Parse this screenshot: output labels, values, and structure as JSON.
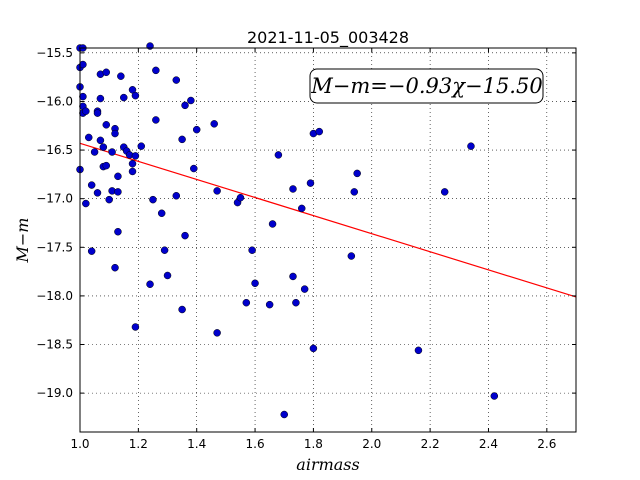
{
  "chart_data": {
    "type": "scatter",
    "title": "2021-11-05_003428",
    "xlabel": "airmass",
    "ylabel": "M−m",
    "xlim": [
      1.0,
      2.7
    ],
    "ylim": [
      -19.4,
      -15.45
    ],
    "y_inverted": true,
    "grid": true,
    "x_ticks": [
      1.0,
      1.2,
      1.4,
      1.6,
      1.8,
      2.0,
      2.2,
      2.4,
      2.6
    ],
    "x_tick_labels": [
      "1.0",
      "1.2",
      "1.4",
      "1.6",
      "1.8",
      "2.0",
      "2.2",
      "2.4",
      "2.6"
    ],
    "y_ticks": [
      -15.5,
      -16.0,
      -16.5,
      -17.0,
      -17.5,
      -18.0,
      -18.5,
      -19.0
    ],
    "y_tick_labels": [
      "−15.5",
      "−16.0",
      "−16.5",
      "−17.0",
      "−17.5",
      "−18.0",
      "−18.5",
      "−19.0"
    ],
    "annotation": "M−m=−0.93χ−15.50",
    "annotation_position": "top-right",
    "fit_line": {
      "slope": -0.93,
      "intercept": -15.5,
      "color": "#ff0000"
    },
    "marker_color": "#0000cc",
    "points": [
      [
        1.0,
        -15.45
      ],
      [
        1.01,
        -15.45
      ],
      [
        1.0,
        -15.65
      ],
      [
        1.01,
        -15.62
      ],
      [
        1.0,
        -15.85
      ],
      [
        1.01,
        -15.95
      ],
      [
        1.01,
        -16.05
      ],
      [
        1.01,
        -16.12
      ],
      [
        1.02,
        -16.1
      ],
      [
        1.0,
        -16.7
      ],
      [
        1.02,
        -17.05
      ],
      [
        1.03,
        -16.37
      ],
      [
        1.04,
        -16.86
      ],
      [
        1.04,
        -17.54
      ],
      [
        1.05,
        -16.52
      ],
      [
        1.06,
        -16.1
      ],
      [
        1.06,
        -16.12
      ],
      [
        1.06,
        -16.94
      ],
      [
        1.07,
        -15.97
      ],
      [
        1.07,
        -15.72
      ],
      [
        1.07,
        -16.4
      ],
      [
        1.08,
        -16.67
      ],
      [
        1.08,
        -16.47
      ],
      [
        1.09,
        -16.24
      ],
      [
        1.09,
        -15.7
      ],
      [
        1.09,
        -16.66
      ],
      [
        1.1,
        -17.01
      ],
      [
        1.11,
        -16.92
      ],
      [
        1.11,
        -16.52
      ],
      [
        1.12,
        -16.28
      ],
      [
        1.12,
        -16.33
      ],
      [
        1.12,
        -17.71
      ],
      [
        1.13,
        -16.93
      ],
      [
        1.13,
        -16.77
      ],
      [
        1.13,
        -17.34
      ],
      [
        1.14,
        -15.74
      ],
      [
        1.15,
        -15.96
      ],
      [
        1.15,
        -16.47
      ],
      [
        1.16,
        -16.51
      ],
      [
        1.17,
        -16.55
      ],
      [
        1.18,
        -16.64
      ],
      [
        1.18,
        -16.72
      ],
      [
        1.18,
        -15.88
      ],
      [
        1.19,
        -15.94
      ],
      [
        1.19,
        -18.32
      ],
      [
        1.19,
        -16.56
      ],
      [
        1.21,
        -16.46
      ],
      [
        1.24,
        -15.43
      ],
      [
        1.24,
        -17.88
      ],
      [
        1.25,
        -17.01
      ],
      [
        1.26,
        -15.68
      ],
      [
        1.26,
        -16.19
      ],
      [
        1.28,
        -17.15
      ],
      [
        1.29,
        -17.53
      ],
      [
        1.3,
        -17.79
      ],
      [
        1.33,
        -15.78
      ],
      [
        1.33,
        -16.97
      ],
      [
        1.35,
        -16.39
      ],
      [
        1.35,
        -18.14
      ],
      [
        1.36,
        -17.38
      ],
      [
        1.36,
        -16.04
      ],
      [
        1.38,
        -15.99
      ],
      [
        1.39,
        -16.69
      ],
      [
        1.4,
        -16.29
      ],
      [
        1.46,
        -16.23
      ],
      [
        1.47,
        -16.92
      ],
      [
        1.47,
        -18.38
      ],
      [
        1.54,
        -17.04
      ],
      [
        1.55,
        -16.99
      ],
      [
        1.57,
        -18.07
      ],
      [
        1.59,
        -17.53
      ],
      [
        1.6,
        -17.87
      ],
      [
        1.65,
        -18.09
      ],
      [
        1.66,
        -17.26
      ],
      [
        1.68,
        -16.55
      ],
      [
        1.7,
        -19.22
      ],
      [
        1.73,
        -16.9
      ],
      [
        1.73,
        -17.8
      ],
      [
        1.74,
        -18.07
      ],
      [
        1.76,
        -17.1
      ],
      [
        1.77,
        -17.93
      ],
      [
        1.79,
        -16.84
      ],
      [
        1.8,
        -16.33
      ],
      [
        1.8,
        -18.54
      ],
      [
        1.82,
        -16.31
      ],
      [
        1.93,
        -17.59
      ],
      [
        1.94,
        -16.93
      ],
      [
        1.95,
        -16.74
      ],
      [
        2.16,
        -18.56
      ],
      [
        2.25,
        -16.93
      ],
      [
        2.34,
        -16.46
      ],
      [
        2.42,
        -19.03
      ]
    ]
  }
}
